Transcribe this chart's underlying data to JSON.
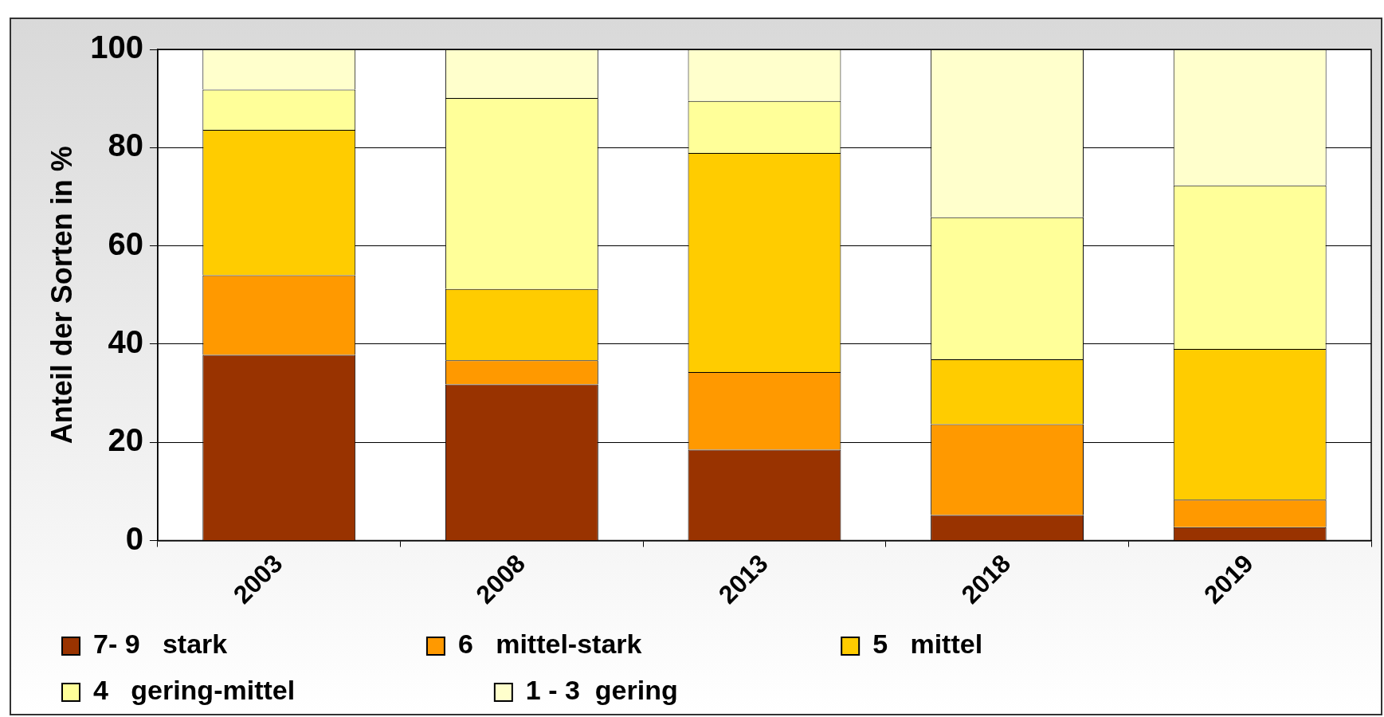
{
  "chart_data": {
    "type": "bar",
    "stacked": true,
    "ylabel": "Anteil der Sorten in %",
    "categories": [
      "2003",
      "2008",
      "2013",
      "2018",
      "2019"
    ],
    "series": [
      {
        "name": "7- 9   stark",
        "color": "#993300",
        "values": [
          37.8,
          31.8,
          18.5,
          5.2,
          2.7
        ]
      },
      {
        "name": "6   mittel-stark",
        "color": "#ff9900",
        "values": [
          16.2,
          4.9,
          15.8,
          18.5,
          5.6
        ]
      },
      {
        "name": "5   mittel",
        "color": "#ffcc00",
        "values": [
          29.6,
          14.5,
          44.6,
          13.2,
          30.7
        ]
      },
      {
        "name": "4   gering-mittel",
        "color": "#ffff99",
        "values": [
          8.2,
          38.9,
          10.6,
          28.9,
          33.3
        ]
      },
      {
        "name": "1 - 3  gering",
        "color": "#ffffcc",
        "values": [
          8.2,
          9.9,
          10.5,
          34.2,
          27.7
        ]
      }
    ],
    "ylim": [
      0,
      100
    ],
    "yticks": [
      0,
      20,
      40,
      60,
      80,
      100
    ],
    "grid": "y",
    "legend": "bottom"
  }
}
